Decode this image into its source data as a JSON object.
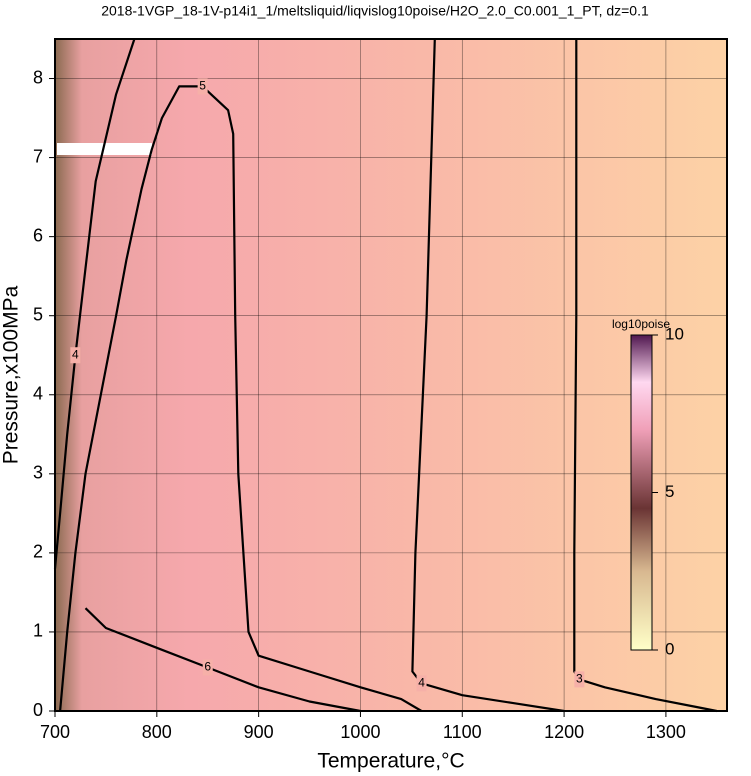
{
  "chart_data": {
    "type": "contour",
    "title": "2018-1VGP_18-1V-p14i1_1/meltsliquid/liqvislog10poise/H2O_2.0_C0.001_1_PT, dz=0.1",
    "xlabel": "Temperature,°C",
    "ylabel": "Pressure,x100MPa",
    "xlim": [
      700,
      1360
    ],
    "ylim": [
      0,
      8.5
    ],
    "xticks": [
      700,
      800,
      900,
      1000,
      1100,
      1200,
      1300
    ],
    "yticks": [
      0,
      1,
      2,
      3,
      4,
      5,
      6,
      7,
      8
    ],
    "grid": true,
    "contours": [
      {
        "level": 3,
        "x": [
          1212,
          1212,
          1210,
          1210,
          1215,
          1240,
          1290,
          1330,
          1350
        ],
        "y": [
          8.5,
          5,
          2,
          0.5,
          0.4,
          0.3,
          0.15,
          0.05,
          0
        ]
      },
      {
        "level": 4,
        "x": [
          1073,
          1065,
          1054,
          1051,
          1060,
          1100,
          1150,
          1200
        ],
        "y": [
          8.5,
          5,
          2,
          0.5,
          0.35,
          0.2,
          0.1,
          0
        ]
      },
      {
        "level": 4,
        "x": [
          778,
          760,
          740,
          730,
          720,
          712,
          705,
          700
        ],
        "y": [
          8.5,
          7.8,
          6.7,
          5.6,
          4.5,
          3.5,
          2.5,
          1.8
        ]
      },
      {
        "level": 5,
        "x": [
          705,
          712,
          720,
          730,
          745,
          760,
          770,
          785,
          795,
          805,
          822,
          845,
          870,
          875,
          877,
          880,
          890,
          900,
          950,
          1000,
          1040,
          1060
        ],
        "y": [
          0,
          1,
          2,
          3,
          4,
          5,
          5.7,
          6.6,
          7.1,
          7.5,
          7.9,
          7.9,
          7.6,
          7.3,
          5,
          3,
          1,
          0.7,
          0.5,
          0.3,
          0.15,
          0
        ]
      },
      {
        "level": 6,
        "x": [
          730,
          750,
          800,
          850,
          900,
          950,
          1000
        ],
        "y": [
          1.3,
          1.05,
          0.8,
          0.55,
          0.3,
          0.12,
          0
        ]
      }
    ],
    "colorbar": {
      "label": "log10poise",
      "lim": [
        0,
        10
      ],
      "ticks": [
        0,
        5,
        10
      ]
    }
  }
}
